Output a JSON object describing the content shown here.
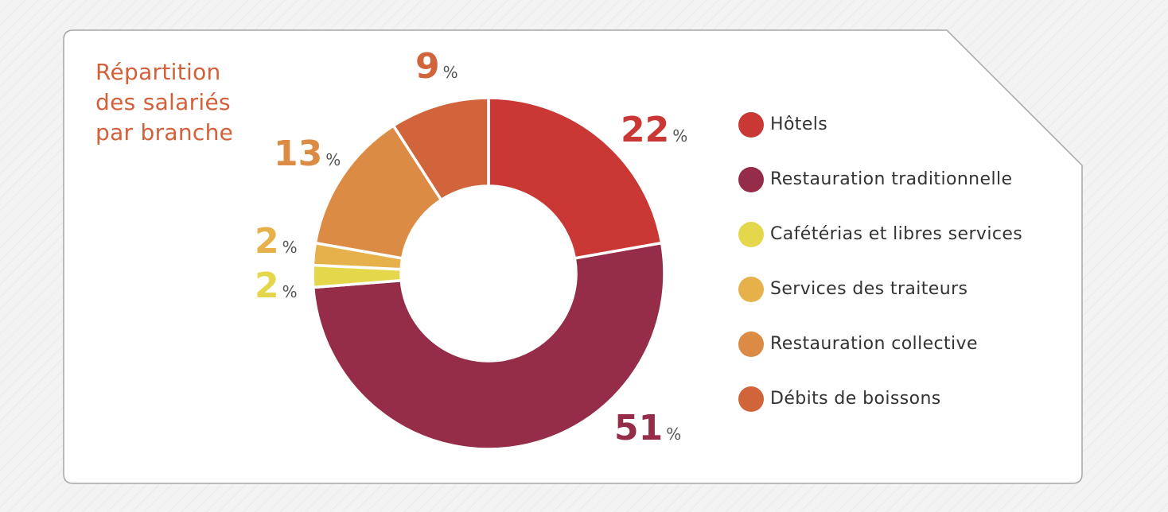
{
  "title_lines": [
    "Répartition",
    "des salariés",
    "par branche"
  ],
  "colors": {
    "title": "#d2603a",
    "border": "#a6a6a6"
  },
  "chart_data": {
    "type": "pie",
    "donut": true,
    "title": "Répartition des salariés par branche",
    "unit": "%",
    "legend_position": "right",
    "slices": [
      {
        "label": "Hôtels",
        "value": 22,
        "color": "#c93834"
      },
      {
        "label": "Restauration traditionnelle",
        "value": 51,
        "color": "#952c48"
      },
      {
        "label": "Cafétérias et libres services",
        "value": 2,
        "color": "#e4d74b"
      },
      {
        "label": "Services des traiteurs",
        "value": 2,
        "color": "#e6b04a"
      },
      {
        "label": "Restauration collective",
        "value": 13,
        "color": "#db8b43"
      },
      {
        "label": "Débits de boissons",
        "value": 9,
        "color": "#d1643a"
      }
    ]
  }
}
